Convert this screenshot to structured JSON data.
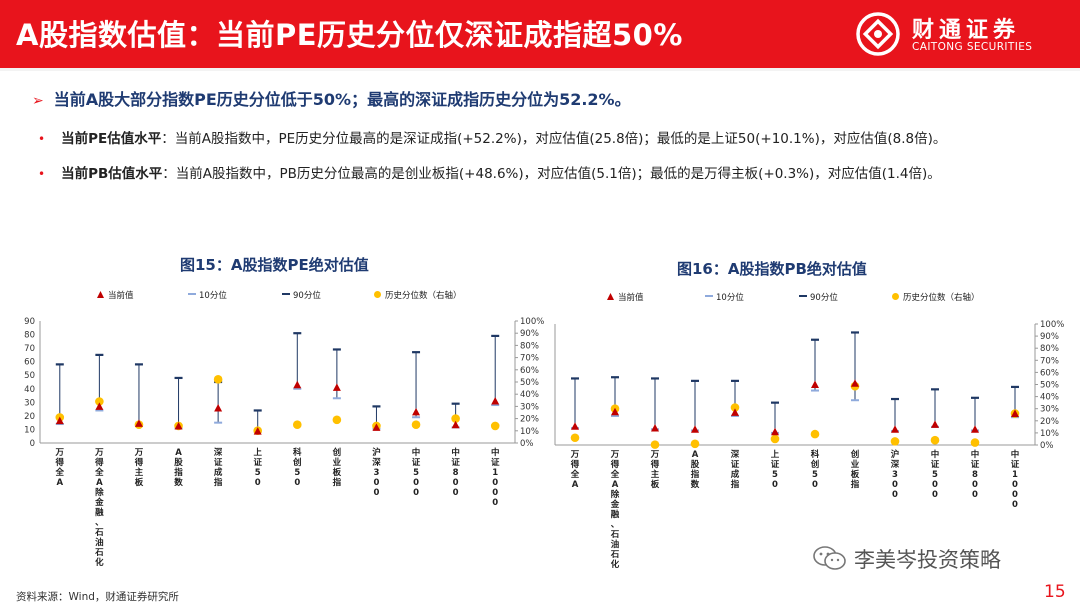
{
  "header": {
    "title": "A股指数估值：当前PE历史分位仅深证成指超50%",
    "logo_cn": "财通证券",
    "logo_en": "CAITONG SECURITIES"
  },
  "bullets": {
    "main": "当前A股大部分指数PE历史分位低于50%；最高的深证成指历史分位为52.2%。",
    "pe_lead": "当前PE估值水平",
    "pe_text": "：当前A股指数中，PE历史分位最高的是深证成指(+52.2%)，对应估值(25.8倍)；最低的是上证50(+10.1%)，对应估值(8.8倍)。",
    "pb_lead": "当前PB估值水平",
    "pb_text": "：当前A股指数中，PB历史分位最高的是创业板指(+48.6%)，对应估值(5.1倍)；最低的是万得主板(+0.3%)，对应估值(1.4倍)。"
  },
  "footer": {
    "source": "资料来源：Wind，财通证券研究所",
    "watermark": "李美岑投资策略",
    "page": "15"
  },
  "colors": {
    "brand_red": "#e8141c",
    "title_blue": "#1f3b72",
    "current": "#c00000",
    "p10": "#8faadc",
    "p90": "#1f3864",
    "percentile": "#ffc000"
  },
  "chart_data": [
    {
      "type": "scatter",
      "title": "图15：A股指数PE绝对估值",
      "legend": [
        "当前值",
        "10分位",
        "90分位",
        "历史分位数（右轴）"
      ],
      "legend_position": "top",
      "categories": [
        "万得全A",
        "万得全A(除金融、石油石化)",
        "万得主板",
        "A股指数",
        "深证成指",
        "上证50",
        "科创50",
        "创业板指",
        "沪深300",
        "中证500",
        "中证800",
        "中证1000"
      ],
      "category_labels": [
        "万得全A",
        "万得全A除金融、石油石化",
        "万得主板",
        "A股指数",
        "深证成指",
        "上证50",
        "科创50",
        "创业板指",
        "沪深300",
        "中证500",
        "中证800",
        "中证1000"
      ],
      "series": [
        {
          "name": "当前值",
          "values": [
            16.5,
            27,
            14.5,
            12.5,
            25.8,
            8.8,
            43,
            41,
            11.5,
            23,
            13.5,
            31
          ]
        },
        {
          "name": "10分位",
          "values": [
            14,
            24,
            13,
            11,
            15,
            8.5,
            40,
            33,
            10.5,
            19,
            11.5,
            28
          ]
        },
        {
          "name": "90分位",
          "values": [
            58,
            65,
            58,
            48,
            45,
            24,
            81,
            69,
            27,
            67,
            29,
            79
          ]
        },
        {
          "name": "历史分位数（右轴）",
          "values": [
            0.21,
            0.34,
            0.15,
            0.14,
            0.522,
            0.101,
            0.15,
            0.19,
            0.14,
            0.15,
            0.2,
            0.14
          ]
        }
      ],
      "y_left": {
        "ylim": [
          0,
          90
        ],
        "ticks": [
          "0",
          "10",
          "20",
          "30",
          "40",
          "50",
          "60",
          "70",
          "80",
          "90"
        ]
      },
      "y_right": {
        "ylim": [
          0,
          1
        ],
        "ticks": [
          "0%",
          "10%",
          "20%",
          "30%",
          "40%",
          "50%",
          "60%",
          "70%",
          "80%",
          "90%",
          "100%"
        ]
      }
    },
    {
      "type": "scatter",
      "title": "图16：A股指数PB绝对估值",
      "legend": [
        "当前值",
        "10分位",
        "90分位",
        "历史分位数（右轴）"
      ],
      "legend_position": "top",
      "categories": [
        "万得全A",
        "万得全A(除金融、石油石化)",
        "万得主板",
        "A股指数",
        "深证成指",
        "上证50",
        "科创50",
        "创业板指",
        "沪深300",
        "中证500",
        "中证800",
        "中证1000"
      ],
      "category_labels": [
        "万得全A",
        "万得全A除金融、石油石化",
        "万得主板",
        "A股指数",
        "深证成指",
        "上证50",
        "科创50",
        "创业板指",
        "沪深300",
        "中证500",
        "中证800",
        "中证1000"
      ],
      "series": [
        {
          "name": "当前值",
          "values": [
            1.55,
            2.75,
            1.4,
            1.3,
            2.7,
            1.1,
            5.0,
            5.1,
            1.3,
            1.7,
            1.3,
            2.6
          ]
        },
        {
          "name": "10分位",
          "values": [
            1.4,
            2.4,
            1.3,
            1.2,
            2.4,
            1.0,
            4.5,
            3.7,
            1.15,
            1.5,
            1.2,
            2.3
          ]
        },
        {
          "name": "90分位",
          "values": [
            5.5,
            5.6,
            5.5,
            5.3,
            5.3,
            3.5,
            8.7,
            9.3,
            3.8,
            4.6,
            3.9,
            4.8
          ]
        },
        {
          "name": "历史分位数（右轴）",
          "values": [
            0.06,
            0.3,
            0.003,
            0.01,
            0.31,
            0.05,
            0.09,
            0.486,
            0.03,
            0.04,
            0.02,
            0.26
          ]
        }
      ],
      "y_left": {
        "ylim": [
          0,
          10
        ],
        "ticks": []
      },
      "y_right": {
        "ylim": [
          0,
          1
        ],
        "ticks": [
          "0%",
          "10%",
          "20%",
          "30%",
          "40%",
          "50%",
          "60%",
          "70%",
          "80%",
          "90%",
          "100%"
        ]
      }
    }
  ]
}
